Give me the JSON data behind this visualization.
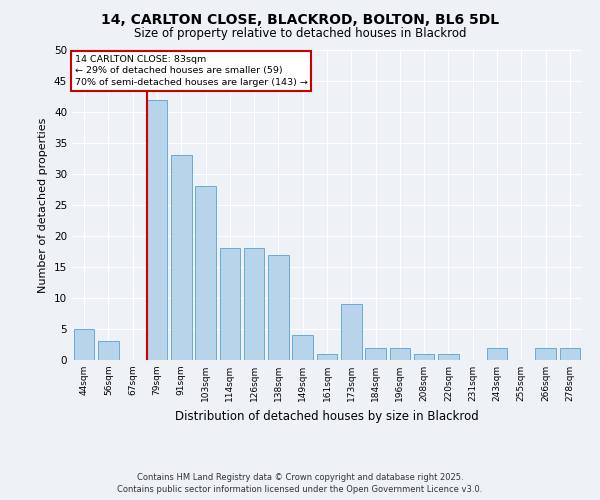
{
  "title1": "14, CARLTON CLOSE, BLACKROD, BOLTON, BL6 5DL",
  "title2": "Size of property relative to detached houses in Blackrod",
  "xlabel": "Distribution of detached houses by size in Blackrod",
  "ylabel": "Number of detached properties",
  "categories": [
    "44sqm",
    "56sqm",
    "67sqm",
    "79sqm",
    "91sqm",
    "103sqm",
    "114sqm",
    "126sqm",
    "138sqm",
    "149sqm",
    "161sqm",
    "173sqm",
    "184sqm",
    "196sqm",
    "208sqm",
    "220sqm",
    "231sqm",
    "243sqm",
    "255sqm",
    "266sqm",
    "278sqm"
  ],
  "values": [
    5,
    3,
    0,
    42,
    33,
    28,
    18,
    18,
    17,
    4,
    1,
    9,
    2,
    2,
    1,
    1,
    0,
    2,
    0,
    2,
    2
  ],
  "bar_color": "#b8d4ea",
  "bar_edgecolor": "#6aaad4",
  "highlight_index": 3,
  "highlight_color": "#cc0000",
  "ylim": [
    0,
    50
  ],
  "yticks": [
    0,
    5,
    10,
    15,
    20,
    25,
    30,
    35,
    40,
    45,
    50
  ],
  "annotation_title": "14 CARLTON CLOSE: 83sqm",
  "annotation_line1": "← 29% of detached houses are smaller (59)",
  "annotation_line2": "70% of semi-detached houses are larger (143) →",
  "annotation_box_color": "#ffffff",
  "annotation_box_edgecolor": "#cc0000",
  "footer1": "Contains HM Land Registry data © Crown copyright and database right 2025.",
  "footer2": "Contains public sector information licensed under the Open Government Licence v3.0.",
  "bg_color": "#eef2f7",
  "grid_color": "#ffffff"
}
